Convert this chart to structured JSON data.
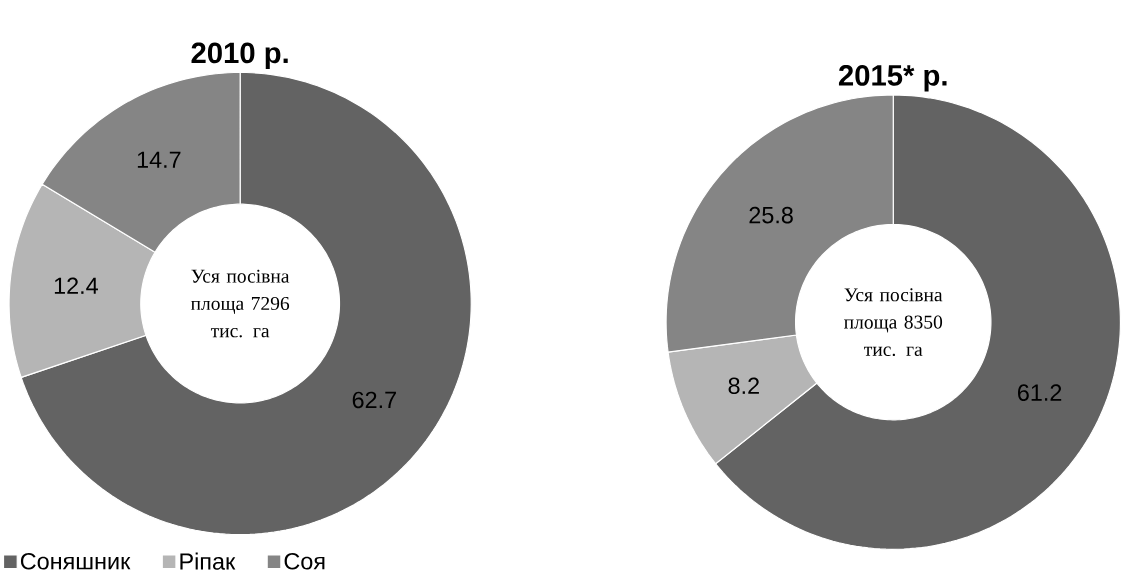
{
  "chart_data": [
    {
      "type": "donut",
      "title": "2010 р.",
      "categories": [
        "Соняшник",
        "Ріпак",
        "Соя"
      ],
      "values": [
        62.7,
        12.4,
        14.7
      ],
      "colors": [
        "#636363",
        "#b5b5b5",
        "#858585"
      ],
      "data_labels": true,
      "legend": "bottom left",
      "annotations": [
        "Уся посівна площа 7296 тис. га"
      ]
    },
    {
      "type": "donut",
      "title": "2015* р.",
      "categories": [
        null,
        null,
        null
      ],
      "values": [
        61.2,
        8.2,
        25.8
      ],
      "colors": [
        "#636363",
        "#b5b5b5",
        "#858585"
      ],
      "data_labels": true,
      "annotations": [
        "Уся посівна площа 8350 тис. га"
      ]
    }
  ]
}
